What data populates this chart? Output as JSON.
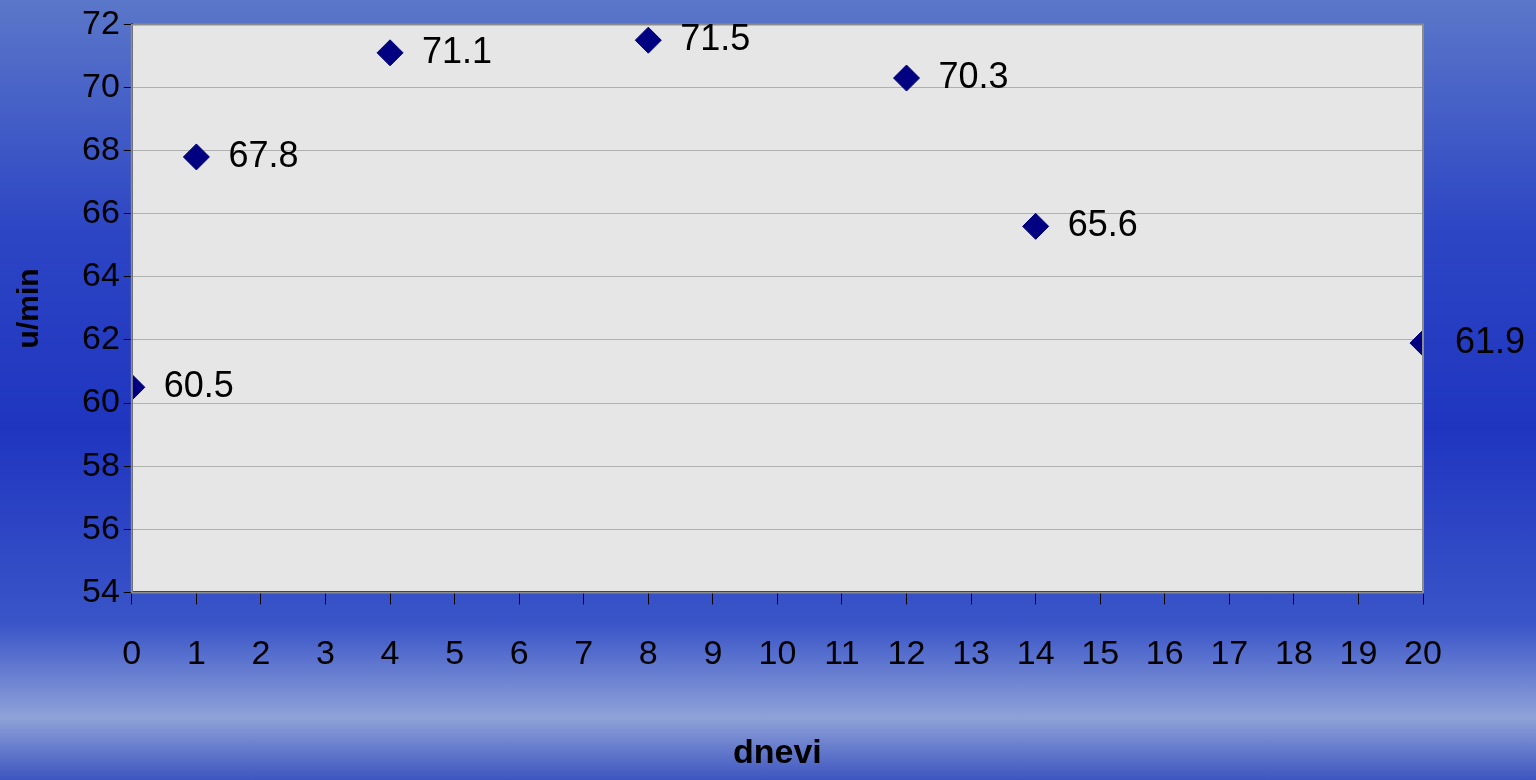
{
  "chart_data": {
    "type": "scatter",
    "xlabel": "dnevi",
    "ylabel": "u/min",
    "x": [
      0,
      1,
      4,
      8,
      12,
      14,
      20
    ],
    "values": [
      60.5,
      67.8,
      71.1,
      71.5,
      70.3,
      65.6,
      61.9
    ],
    "color": "#000080",
    "marker": "diamond",
    "data_labels": true,
    "xlim": [
      0,
      20
    ],
    "xticks": [
      0,
      1,
      2,
      3,
      4,
      5,
      6,
      7,
      8,
      9,
      10,
      11,
      12,
      13,
      14,
      15,
      16,
      17,
      18,
      19,
      20
    ],
    "ylim": [
      54,
      72
    ],
    "yticks": [
      54,
      56,
      58,
      60,
      62,
      64,
      66,
      68,
      70,
      72
    ],
    "grid": "y"
  }
}
